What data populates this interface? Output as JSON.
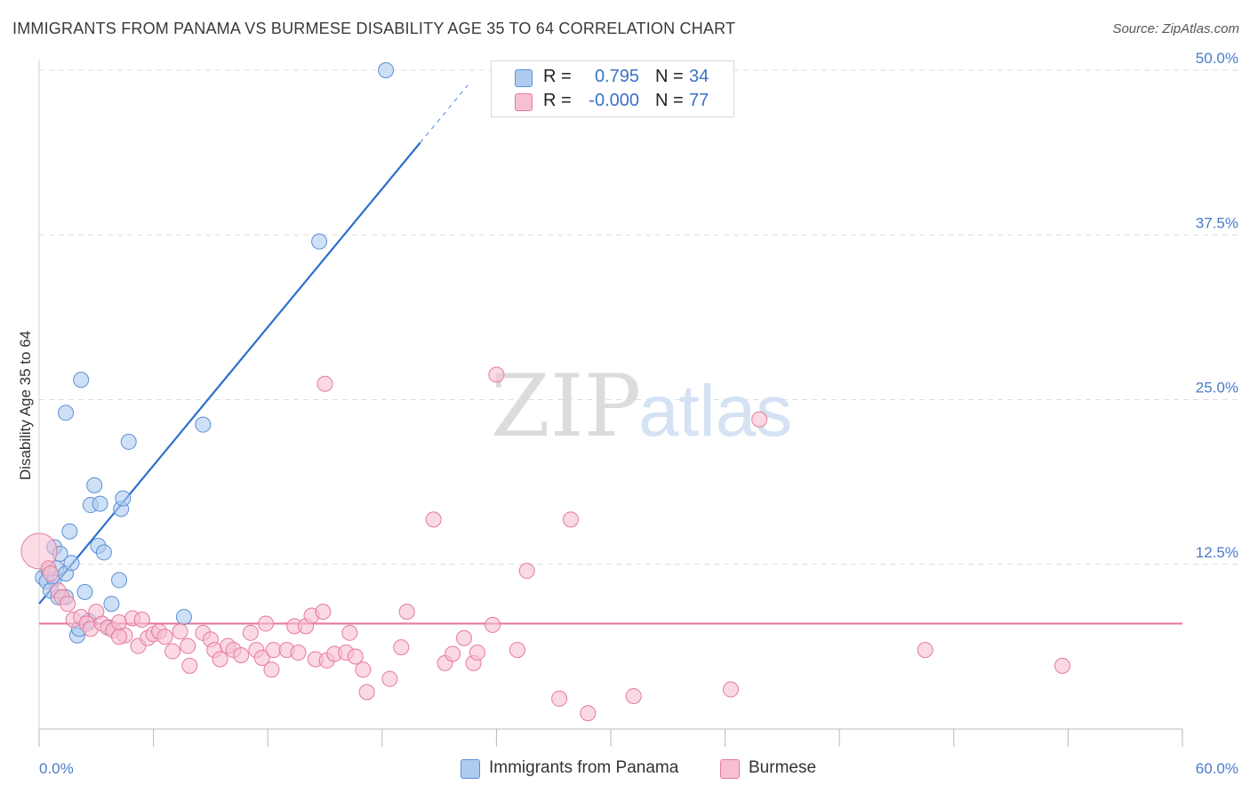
{
  "header": {
    "title": "IMMIGRANTS FROM PANAMA VS BURMESE DISABILITY AGE 35 TO 64 CORRELATION CHART",
    "source": "Source: ZipAtlas.com"
  },
  "watermark": {
    "zip": "ZIP",
    "atlas": "atlas"
  },
  "legend": {
    "rows": [
      {
        "r_label": "R =",
        "r_value": "0.795",
        "n_label": "N =",
        "n_value": "34",
        "color": "#aecbef",
        "border": "#5b8fd6"
      },
      {
        "r_label": "R =",
        "r_value": "-0.000",
        "n_label": "N =",
        "n_value": "77",
        "color": "#f7c0d2",
        "border": "#e7799c"
      }
    ]
  },
  "bottom_legend": [
    {
      "label": "Immigrants from Panama",
      "color": "#aecbef",
      "border": "#5b8fd6"
    },
    {
      "label": "Burmese",
      "color": "#f7c0d2",
      "border": "#e7799c"
    }
  ],
  "chart_data": {
    "type": "scatter",
    "title": "IMMIGRANTS FROM PANAMA VS BURMESE DISABILITY AGE 35 TO 64 CORRELATION CHART",
    "xlabel": "",
    "ylabel": "Disability Age 35 to 64",
    "xlim": [
      0,
      60
    ],
    "ylim": [
      0,
      50
    ],
    "x_tick_labels": [
      "0.0%",
      "60.0%"
    ],
    "y_ticks": [
      12.5,
      25.0,
      37.5,
      50.0
    ],
    "y_tick_labels": [
      "12.5%",
      "25.0%",
      "37.5%",
      "50.0%"
    ],
    "grid": true,
    "legend_position": "top-center",
    "series": [
      {
        "name": "Immigrants from Panama",
        "color": "#5b8fd6",
        "fill": "#aecbef",
        "trend": {
          "type": "linear",
          "x0": 0.0,
          "y0": 9.5,
          "x1": 20.0,
          "y1": 44.5,
          "dashed_to_x": 22.5,
          "color": "#2e6fce"
        },
        "points": [
          [
            0.2,
            11.5
          ],
          [
            0.5,
            12.0
          ],
          [
            0.4,
            11.2
          ],
          [
            0.8,
            11.4
          ],
          [
            0.9,
            12.2
          ],
          [
            0.6,
            10.5
          ],
          [
            0.8,
            13.8
          ],
          [
            1.1,
            13.3
          ],
          [
            1.0,
            10.0
          ],
          [
            1.4,
            11.8
          ],
          [
            1.7,
            12.6
          ],
          [
            1.6,
            15.0
          ],
          [
            1.4,
            10.0
          ],
          [
            2.0,
            7.1
          ],
          [
            2.1,
            7.6
          ],
          [
            2.4,
            10.4
          ],
          [
            2.6,
            8.2
          ],
          [
            2.7,
            17.0
          ],
          [
            2.9,
            18.5
          ],
          [
            3.1,
            13.9
          ],
          [
            3.2,
            17.1
          ],
          [
            3.4,
            13.4
          ],
          [
            3.7,
            7.7
          ],
          [
            3.8,
            9.5
          ],
          [
            4.2,
            11.3
          ],
          [
            4.3,
            16.7
          ],
          [
            4.4,
            17.5
          ],
          [
            4.7,
            21.8
          ],
          [
            2.2,
            26.5
          ],
          [
            1.4,
            24.0
          ],
          [
            7.6,
            8.5
          ],
          [
            8.6,
            23.1
          ],
          [
            14.7,
            37.0
          ],
          [
            18.2,
            50.0
          ]
        ]
      },
      {
        "name": "Burmese",
        "color": "#e7799c",
        "fill": "#f7c0d2",
        "trend": {
          "type": "linear",
          "x0": 0.0,
          "y0": 8.0,
          "x1": 60.0,
          "y1": 8.0,
          "color": "#e7799c"
        },
        "points": [
          [
            0.0,
            13.5
          ],
          [
            0.5,
            12.2
          ],
          [
            0.6,
            11.8
          ],
          [
            1.0,
            10.5
          ],
          [
            1.2,
            10.0
          ],
          [
            1.5,
            9.5
          ],
          [
            1.8,
            8.3
          ],
          [
            2.2,
            8.5
          ],
          [
            2.5,
            8.0
          ],
          [
            2.7,
            7.6
          ],
          [
            3.0,
            8.9
          ],
          [
            3.3,
            8.0
          ],
          [
            3.6,
            7.7
          ],
          [
            3.9,
            7.5
          ],
          [
            4.2,
            8.1
          ],
          [
            4.5,
            7.1
          ],
          [
            4.2,
            7.0
          ],
          [
            4.9,
            8.4
          ],
          [
            5.2,
            6.3
          ],
          [
            5.4,
            8.3
          ],
          [
            5.7,
            6.9
          ],
          [
            6.0,
            7.2
          ],
          [
            6.3,
            7.4
          ],
          [
            6.6,
            7.0
          ],
          [
            7.0,
            5.9
          ],
          [
            7.4,
            7.4
          ],
          [
            7.8,
            6.3
          ],
          [
            7.9,
            4.8
          ],
          [
            8.6,
            7.3
          ],
          [
            9.0,
            6.8
          ],
          [
            9.2,
            6.0
          ],
          [
            9.5,
            5.3
          ],
          [
            9.9,
            6.3
          ],
          [
            10.2,
            6.0
          ],
          [
            10.6,
            5.6
          ],
          [
            11.1,
            7.3
          ],
          [
            11.4,
            6.0
          ],
          [
            11.7,
            5.4
          ],
          [
            11.9,
            8.0
          ],
          [
            12.3,
            6.0
          ],
          [
            12.2,
            4.5
          ],
          [
            13.0,
            6.0
          ],
          [
            13.4,
            7.8
          ],
          [
            13.6,
            5.8
          ],
          [
            14.0,
            7.8
          ],
          [
            14.3,
            8.6
          ],
          [
            14.9,
            8.9
          ],
          [
            14.5,
            5.3
          ],
          [
            15.1,
            5.2
          ],
          [
            15.5,
            5.7
          ],
          [
            16.1,
            5.8
          ],
          [
            16.3,
            7.3
          ],
          [
            16.6,
            5.5
          ],
          [
            17.0,
            4.5
          ],
          [
            17.2,
            2.8
          ],
          [
            18.4,
            3.8
          ],
          [
            19.0,
            6.2
          ],
          [
            19.3,
            8.9
          ],
          [
            20.7,
            15.9
          ],
          [
            21.3,
            5.0
          ],
          [
            21.7,
            5.7
          ],
          [
            22.3,
            6.9
          ],
          [
            22.8,
            5.0
          ],
          [
            23.0,
            5.8
          ],
          [
            23.8,
            7.9
          ],
          [
            24.0,
            26.9
          ],
          [
            25.1,
            6.0
          ],
          [
            25.6,
            12.0
          ],
          [
            27.3,
            2.3
          ],
          [
            27.9,
            15.9
          ],
          [
            28.8,
            1.2
          ],
          [
            36.3,
            3.0
          ],
          [
            37.8,
            23.5
          ],
          [
            46.5,
            6.0
          ],
          [
            53.7,
            4.8
          ],
          [
            31.2,
            2.5
          ],
          [
            15.0,
            26.2
          ]
        ]
      }
    ]
  }
}
